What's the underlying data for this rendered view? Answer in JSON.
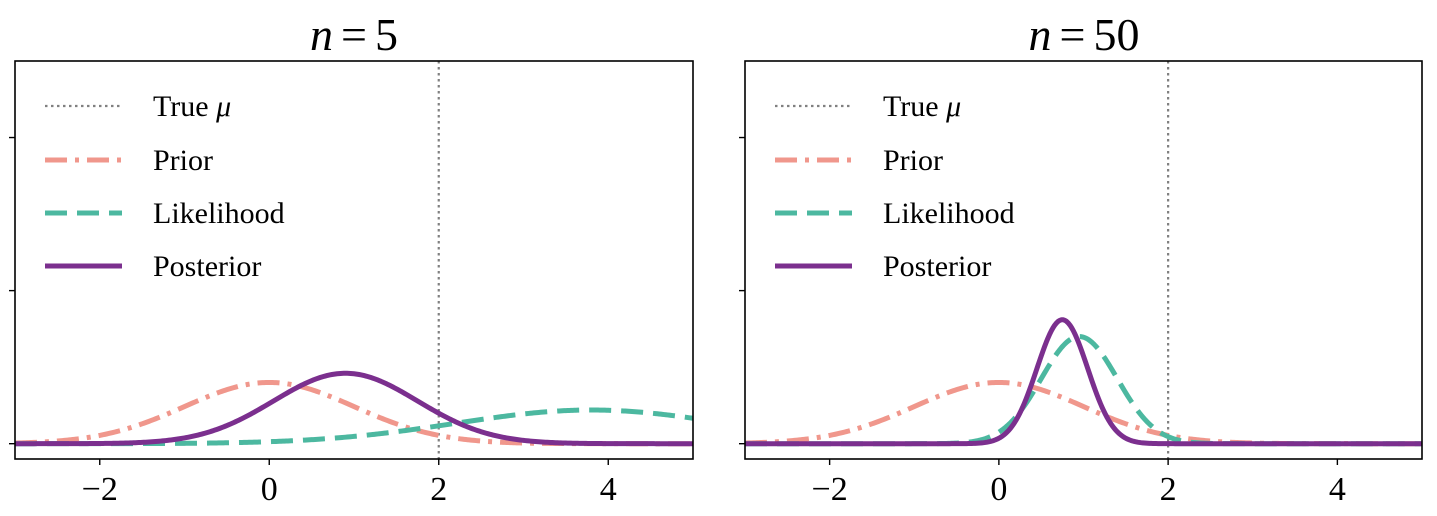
{
  "chart_data": [
    {
      "type": "line",
      "title": "n = 5",
      "title_var": "n",
      "title_eq": "=",
      "title_value": "5",
      "xlabel": "",
      "ylabel": "",
      "xlim": [
        -3,
        5
      ],
      "xticks": [
        -2,
        0,
        2,
        4
      ],
      "xtick_labels": [
        "−2",
        "0",
        "2",
        "4"
      ],
      "yticks_count": 3,
      "ytick_labels": [
        "",
        "",
        ""
      ],
      "true_mu": 2,
      "legend_position": "upper-left",
      "legend": [
        "True μ",
        "Prior",
        "Likelihood",
        "Posterior"
      ],
      "series": [
        {
          "name": "True μ",
          "kind": "vline",
          "x": 2,
          "color": "#808080",
          "style": "dotted"
        },
        {
          "name": "Prior",
          "kind": "gaussian",
          "mean": 0,
          "sd": 1,
          "peak": 0.4,
          "color": "#f0978c",
          "style": "dashdot"
        },
        {
          "name": "Likelihood",
          "kind": "gaussian",
          "mean": 3.8,
          "sd": 1.6,
          "peak": 0.22,
          "color": "#4cb8a0",
          "style": "dashed"
        },
        {
          "name": "Posterior",
          "kind": "gaussian",
          "mean": 0.9,
          "sd": 0.85,
          "peak": 0.46,
          "color": "#7b2f8e",
          "style": "solid"
        }
      ]
    },
    {
      "type": "line",
      "title": "n = 50",
      "title_var": "n",
      "title_eq": "=",
      "title_value": "50",
      "xlabel": "",
      "ylabel": "",
      "xlim": [
        -3,
        5
      ],
      "xticks": [
        -2,
        0,
        2,
        4
      ],
      "xtick_labels": [
        "−2",
        "0",
        "2",
        "4"
      ],
      "yticks_count": 3,
      "ytick_labels": [
        "",
        "",
        ""
      ],
      "true_mu": 2,
      "legend_position": "upper-left",
      "legend": [
        "True μ",
        "Prior",
        "Likelihood",
        "Posterior"
      ],
      "series": [
        {
          "name": "True μ",
          "kind": "vline",
          "x": 2,
          "color": "#808080",
          "style": "dotted"
        },
        {
          "name": "Prior",
          "kind": "gaussian",
          "mean": 0,
          "sd": 1,
          "peak": 0.4,
          "color": "#f0978c",
          "style": "dashdot"
        },
        {
          "name": "Likelihood",
          "kind": "gaussian",
          "mean": 0.95,
          "sd": 0.45,
          "peak": 0.7,
          "color": "#4cb8a0",
          "style": "dashed"
        },
        {
          "name": "Posterior",
          "kind": "gaussian",
          "mean": 0.75,
          "sd": 0.3,
          "peak": 0.81,
          "color": "#7b2f8e",
          "style": "solid"
        }
      ]
    }
  ],
  "y_range": [
    -0.1,
    2.5
  ],
  "y_tick_values": [
    0,
    1,
    2
  ]
}
